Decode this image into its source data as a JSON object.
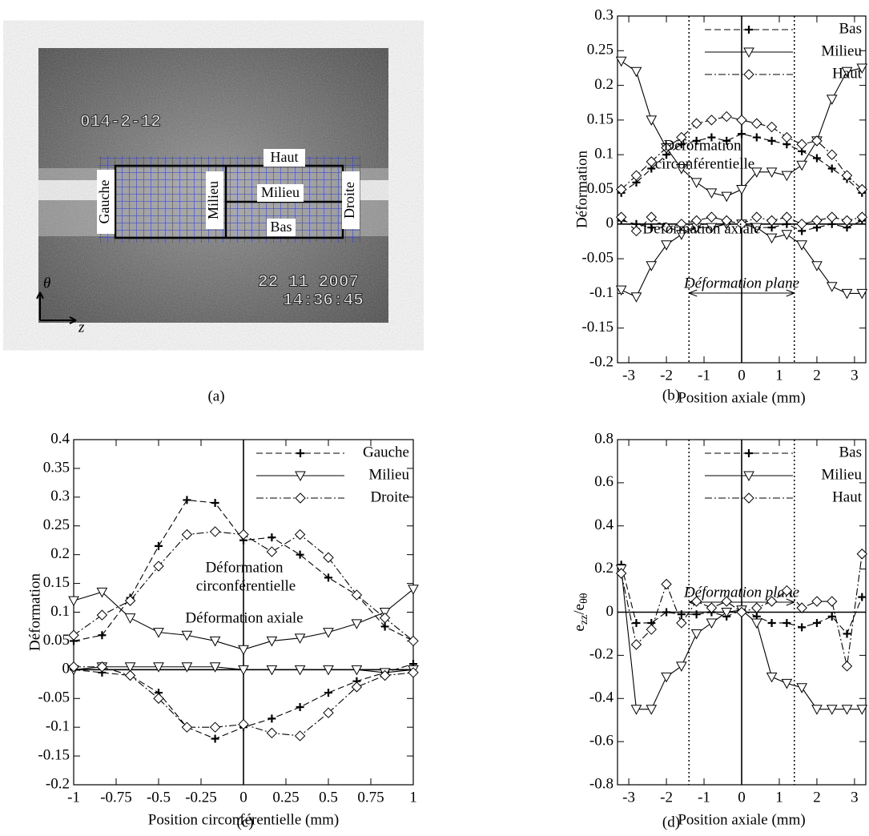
{
  "image": {
    "stamp_id": "014-2-12",
    "date": "22 11 2007",
    "time": "14:36:45",
    "labels": {
      "haut": "Haut",
      "milieu": "Milieu",
      "bas": "Bas",
      "gauche": "Gauche",
      "milieu_vertical": "Milieu",
      "droite": "Droite"
    },
    "axis_theta": "θ",
    "axis_z": "z"
  },
  "captions": [
    "(a)",
    "(b)",
    "(c)",
    "(d)"
  ],
  "chart_data": [
    {
      "type": "line",
      "xlabel": "Position axiale (mm)",
      "ylabel": "Déformation",
      "x": [
        -3.2,
        -2.8,
        -2.4,
        -2.0,
        -1.6,
        -1.2,
        -0.8,
        -0.4,
        0,
        0.4,
        0.8,
        1.2,
        1.6,
        2.0,
        2.4,
        2.8,
        3.2
      ],
      "xlim": [
        -3.3,
        3.3
      ],
      "xticks": [
        -3,
        -2,
        -1,
        0,
        1,
        2,
        3
      ],
      "ylim": [
        -0.2,
        0.3
      ],
      "yticks": [
        -0.2,
        -0.15,
        -0.1,
        -0.05,
        0,
        0.05,
        0.1,
        0.15,
        0.2,
        0.25,
        0.3
      ],
      "zero_lines": true,
      "vlines": [
        -1.4,
        1.4
      ],
      "legend": "upper right",
      "annotations": [
        "Déformation",
        "circonférentielle",
        "Déformation axiale"
      ],
      "plane_label": "Déformation plane",
      "series": [
        {
          "name": "Bas",
          "color": "#000000",
          "marker": "plus",
          "dash": "dashed",
          "values": [
            0.045,
            0.06,
            0.08,
            0.1,
            0.115,
            0.12,
            0.125,
            0.12,
            0.13,
            0.125,
            0.12,
            0.115,
            0.105,
            0.095,
            0.08,
            0.065,
            0.045
          ]
        },
        {
          "name": "Milieu",
          "color": "#000000",
          "marker": "triangle",
          "dash": "solid",
          "values": [
            0.235,
            0.22,
            0.15,
            0.11,
            0.08,
            0.06,
            0.045,
            0.04,
            0.05,
            0.075,
            0.075,
            0.07,
            0.085,
            0.12,
            0.18,
            0.22,
            0.225
          ]
        },
        {
          "name": "Haut",
          "color": "#000000",
          "marker": "diamond",
          "dash": "dashdot",
          "values": [
            0.05,
            0.07,
            0.09,
            0.11,
            0.125,
            0.145,
            0.15,
            0.155,
            0.15,
            0.145,
            0.14,
            0.125,
            0.115,
            0.12,
            0.1,
            0.07,
            0.05
          ]
        },
        {
          "color": "#000000",
          "marker": "plus",
          "dash": "dashed",
          "values": [
            0.005,
            0,
            -0.005,
            -0.005,
            -0.01,
            -0.005,
            -0.005,
            0,
            0,
            -0.005,
            -0.005,
            0,
            -0.01,
            -0.005,
            0,
            -0.005,
            0.005
          ]
        },
        {
          "color": "#000000",
          "marker": "triangle",
          "dash": "solid",
          "values": [
            -0.095,
            -0.105,
            -0.06,
            -0.03,
            -0.015,
            -0.005,
            -0.005,
            0,
            0,
            -0.005,
            -0.02,
            -0.015,
            -0.03,
            -0.06,
            -0.09,
            -0.1,
            -0.1
          ]
        },
        {
          "color": "#000000",
          "marker": "diamond",
          "dash": "dashdot",
          "values": [
            0.01,
            -0.01,
            0.01,
            -0.005,
            0,
            0.005,
            0.01,
            0.005,
            0,
            0.01,
            0.005,
            0.01,
            0,
            0.005,
            0.01,
            0.005,
            0.01
          ]
        }
      ]
    },
    {
      "type": "line",
      "xlabel": "Position circonférentielle (mm)",
      "ylabel": "Déformation",
      "x": [
        -1,
        -0.833,
        -0.667,
        -0.5,
        -0.333,
        -0.167,
        0,
        0.167,
        0.333,
        0.5,
        0.667,
        0.833,
        1
      ],
      "xlim": [
        -1,
        1
      ],
      "xticks": [
        -1,
        -0.75,
        -0.5,
        -0.25,
        0,
        0.25,
        0.5,
        0.75,
        1
      ],
      "ylim": [
        -0.2,
        0.4
      ],
      "yticks": [
        -0.2,
        -0.15,
        -0.1,
        -0.05,
        0,
        0.05,
        0.1,
        0.15,
        0.2,
        0.25,
        0.3,
        0.35,
        0.4
      ],
      "zero_lines": true,
      "legend": "upper right",
      "annotations": [
        "Déformation",
        "circonférentielle",
        "Déformation axiale"
      ],
      "series": [
        {
          "name": "Gauche",
          "color": "#000000",
          "marker": "plus",
          "dash": "dashed",
          "values": [
            0.05,
            0.06,
            0.125,
            0.215,
            0.295,
            0.29,
            0.225,
            0.23,
            0.2,
            0.16,
            0.13,
            0.075,
            0.05
          ]
        },
        {
          "name": "Milieu",
          "color": "#000000",
          "marker": "triangle",
          "dash": "solid",
          "values": [
            0.12,
            0.135,
            0.09,
            0.065,
            0.06,
            0.05,
            0.035,
            0.05,
            0.055,
            0.065,
            0.08,
            0.1,
            0.14
          ]
        },
        {
          "name": "Droite",
          "color": "#000000",
          "marker": "diamond",
          "dash": "dashdot",
          "values": [
            0.06,
            0.095,
            0.12,
            0.18,
            0.235,
            0.24,
            0.235,
            0.205,
            0.235,
            0.195,
            0.13,
            0.09,
            0.05
          ]
        },
        {
          "color": "#000000",
          "marker": "plus",
          "dash": "dashed",
          "values": [
            0,
            -0.005,
            -0.01,
            -0.04,
            -0.1,
            -0.12,
            -0.1,
            -0.085,
            -0.065,
            -0.04,
            -0.02,
            -0.005,
            0.01
          ]
        },
        {
          "color": "#000000",
          "marker": "triangle",
          "dash": "solid",
          "values": [
            0,
            0.005,
            0.005,
            0.005,
            0.005,
            0.005,
            0,
            0,
            0,
            0,
            0,
            -0.005,
            0
          ]
        },
        {
          "color": "#000000",
          "marker": "diamond",
          "dash": "dashdot",
          "values": [
            0.005,
            0.005,
            -0.01,
            -0.05,
            -0.1,
            -0.1,
            -0.095,
            -0.11,
            -0.115,
            -0.075,
            -0.03,
            -0.01,
            -0.005
          ]
        }
      ]
    },
    {
      "type": "line",
      "xlabel": "Position axiale (mm)",
      "ylabel": {
        "main": "e",
        "sub": "zz",
        "main2": "/e",
        "sub2": "θθ"
      },
      "x": [
        -3.2,
        -2.8,
        -2.4,
        -2.0,
        -1.6,
        -1.2,
        -0.8,
        -0.4,
        0,
        0.4,
        0.8,
        1.2,
        1.6,
        2.0,
        2.4,
        2.8,
        3.2
      ],
      "xlim": [
        -3.3,
        3.3
      ],
      "xticks": [
        -3,
        -2,
        -1,
        0,
        1,
        2,
        3
      ],
      "ylim": [
        -0.8,
        0.8
      ],
      "yticks": [
        -0.8,
        -0.6,
        -0.4,
        -0.2,
        0,
        0.2,
        0.4,
        0.6,
        0.8
      ],
      "zero_lines": true,
      "vlines": [
        -1.4,
        1.4
      ],
      "legend": "upper right",
      "annotations": [],
      "plane_label": "Déformation plane",
      "series": [
        {
          "name": "Bas",
          "color": "#000000",
          "marker": "plus",
          "dash": "dashed",
          "values": [
            0.22,
            -0.05,
            -0.05,
            0,
            -0.01,
            -0.01,
            0,
            -0.02,
            0.01,
            -0.02,
            -0.05,
            -0.05,
            -0.07,
            -0.05,
            -0.02,
            -0.1,
            0.07
          ]
        },
        {
          "name": "Milieu",
          "color": "#000000",
          "marker": "triangle",
          "dash": "solid",
          "values": [
            0.2,
            -0.45,
            -0.45,
            -0.3,
            -0.25,
            -0.1,
            -0.05,
            0,
            0.01,
            -0.05,
            -0.3,
            -0.33,
            -0.35,
            -0.45,
            -0.45,
            -0.45,
            -0.45
          ]
        },
        {
          "name": "Haut",
          "color": "#000000",
          "marker": "diamond",
          "dash": "dashdot",
          "values": [
            0.18,
            -0.15,
            -0.08,
            0.13,
            -0.05,
            0.05,
            0.02,
            0.05,
            0,
            0.02,
            0.05,
            0.1,
            0.02,
            0.05,
            0.05,
            -0.25,
            0.27
          ]
        }
      ]
    }
  ]
}
